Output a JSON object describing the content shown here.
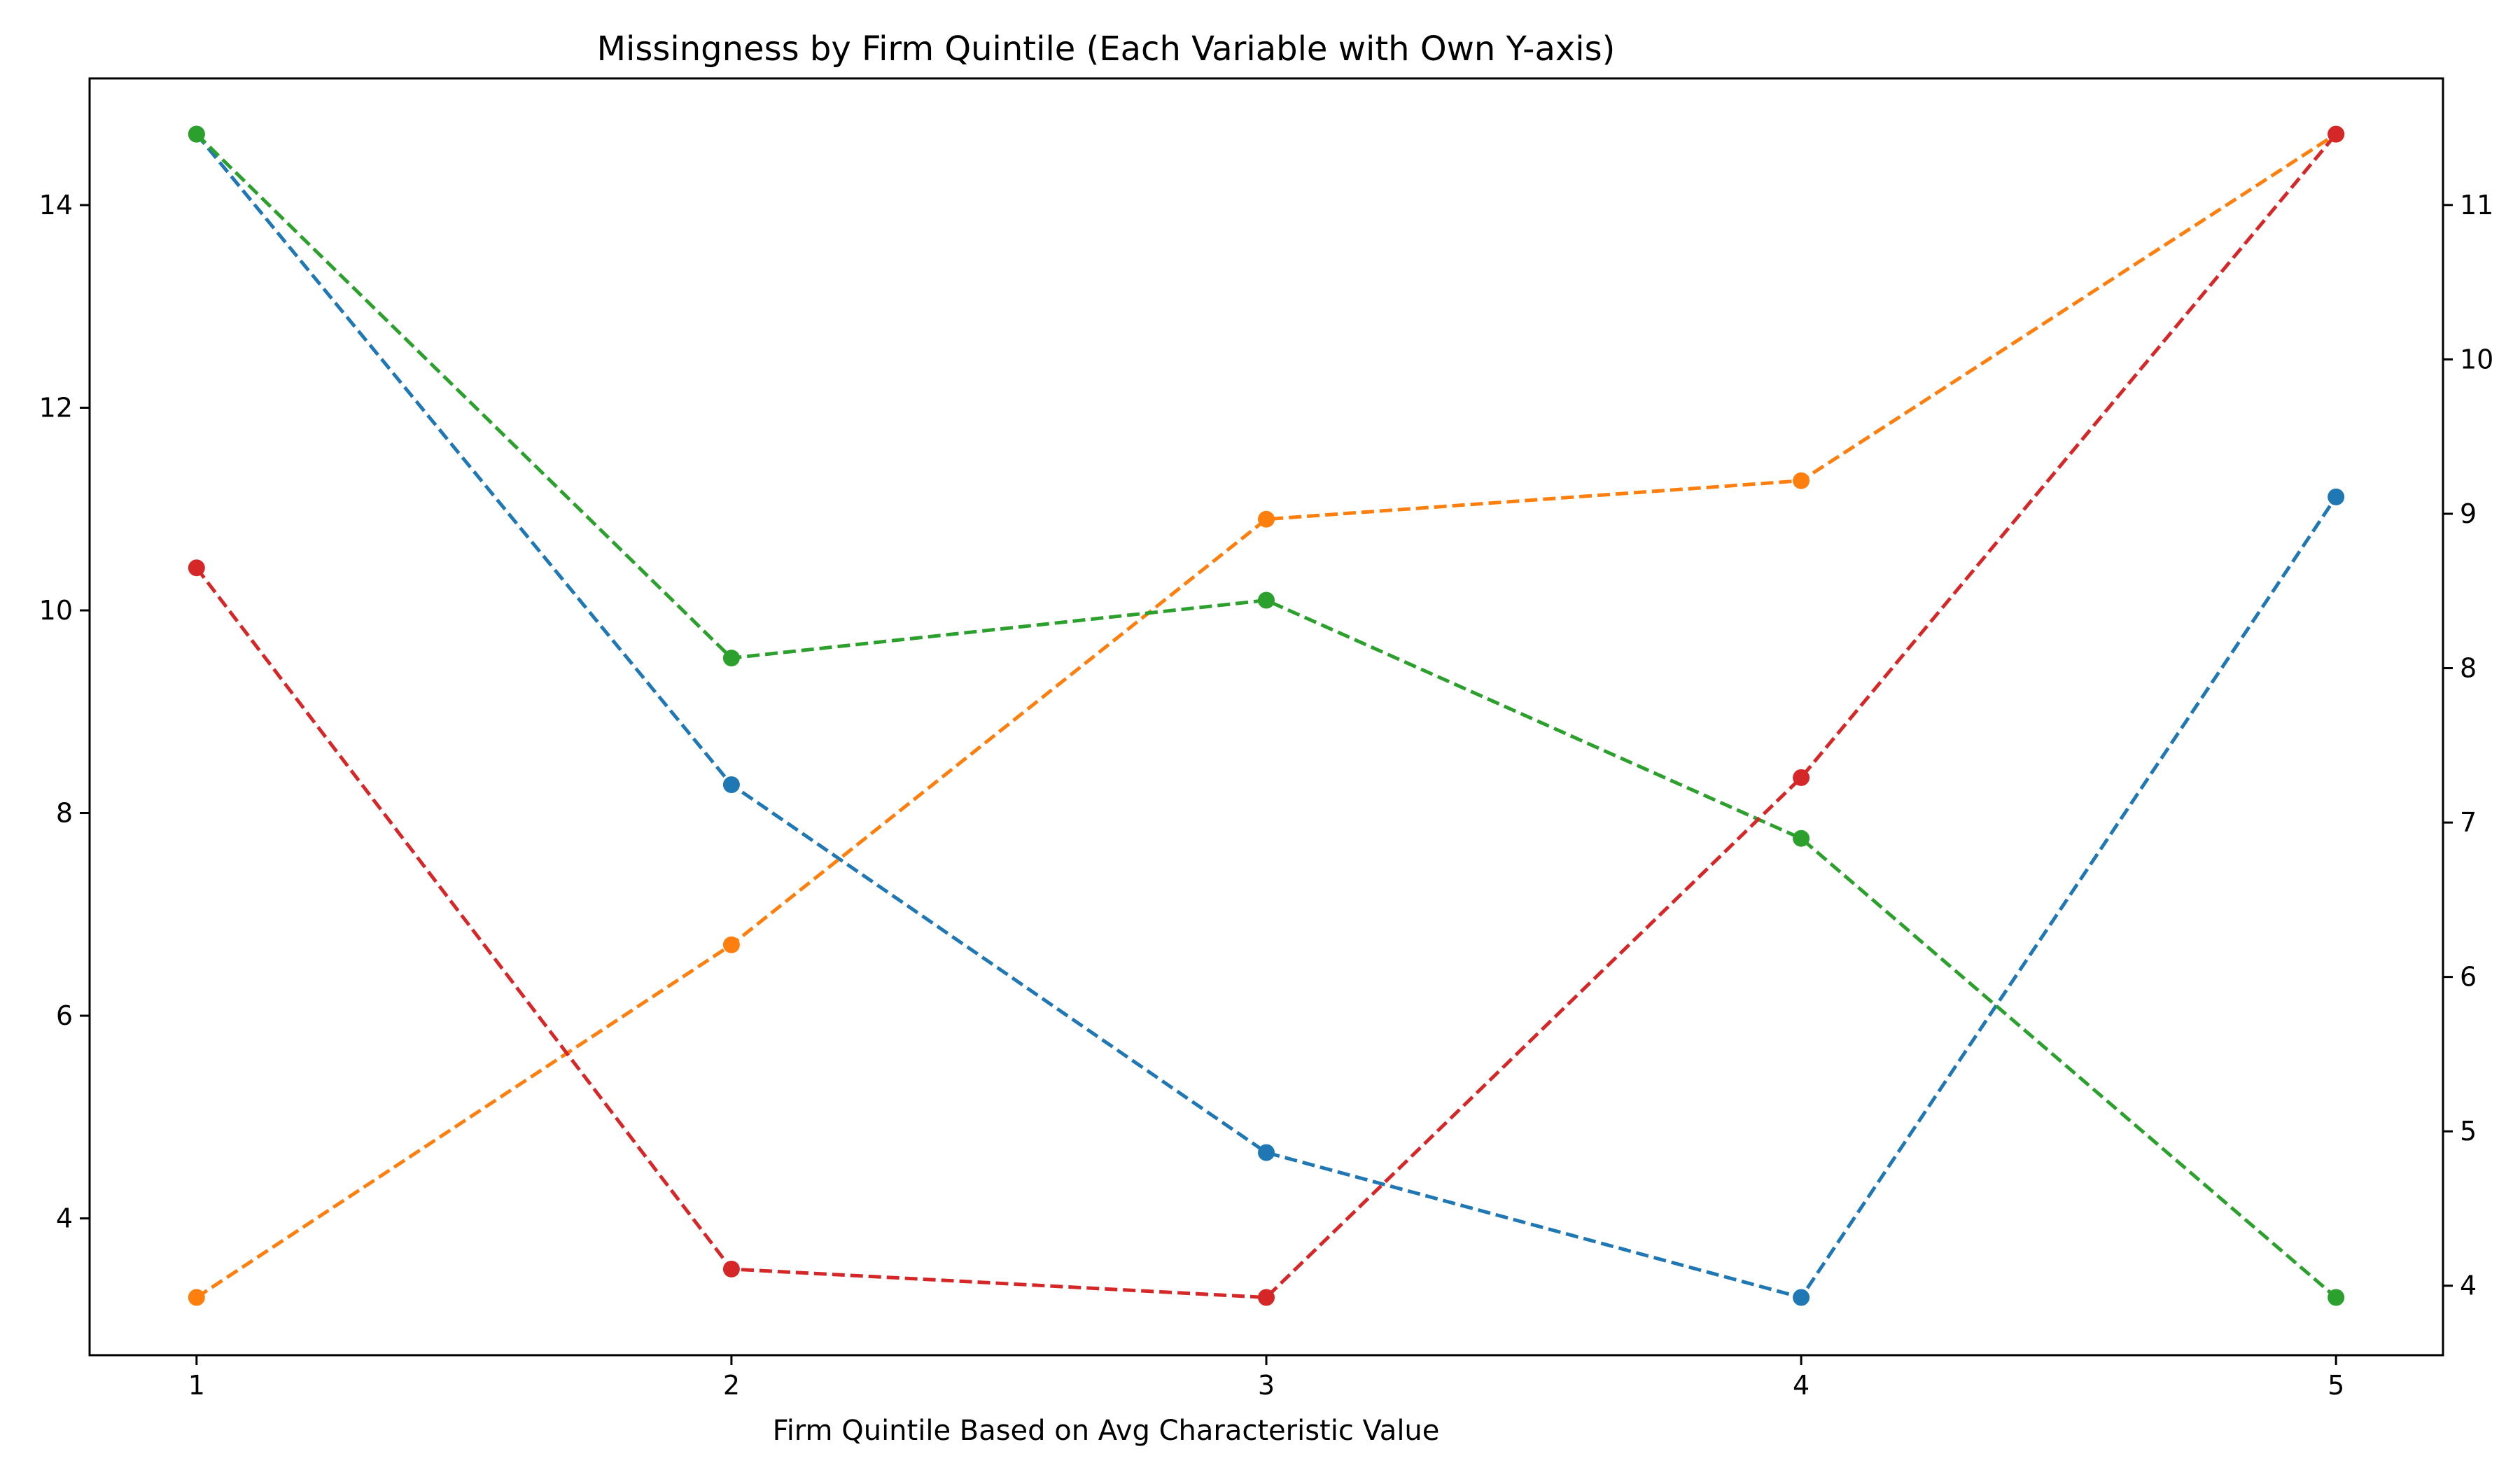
{
  "chart_data": {
    "type": "line",
    "title": "Missingness by Firm Quintile (Each Variable with Own Y-axis)",
    "xlabel": "Firm Quintile Based on Avg Characteristic Value",
    "ylabel": "",
    "x": [
      1,
      2,
      3,
      4,
      5
    ],
    "x_ticks": [
      "1",
      "2",
      "3",
      "4",
      "5"
    ],
    "xlim": [
      0.8,
      5.2
    ],
    "left_axis": {
      "ylim": [
        2.65,
        15.25
      ],
      "ticks": [
        "4",
        "6",
        "8",
        "10",
        "12",
        "14"
      ]
    },
    "right_axis": {
      "ylim": [
        3.55,
        11.82
      ],
      "ticks": [
        "4",
        "5",
        "6",
        "7",
        "8",
        "9",
        "10",
        "11"
      ]
    },
    "grid": false,
    "line_style": "dashed",
    "marker": "circle",
    "series": [
      {
        "color": "#1f77b4",
        "axis": "left",
        "values": [
          14.7,
          8.28,
          4.65,
          3.22,
          11.12
        ]
      },
      {
        "color": "#ff7f0e",
        "axis": "left",
        "values": [
          3.22,
          6.7,
          10.9,
          11.28,
          14.7
        ]
      },
      {
        "color": "#2ca02c",
        "axis": "left",
        "values": [
          14.7,
          9.53,
          10.1,
          7.75,
          3.22
        ]
      },
      {
        "color": "#d62728",
        "axis": "left",
        "values": [
          10.42,
          3.5,
          3.22,
          8.35,
          14.7
        ]
      }
    ]
  }
}
